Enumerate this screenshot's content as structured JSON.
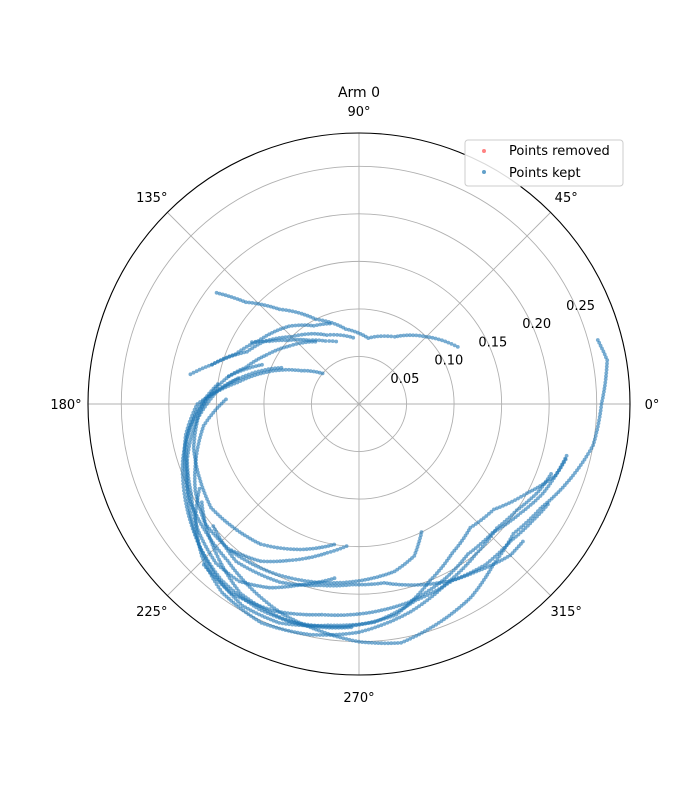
{
  "chart_data": {
    "type": "scatter",
    "projection": "polar",
    "title": "Arm 0",
    "theta_unit": "degrees",
    "r_ticks": [
      0.05,
      0.1,
      0.15,
      0.2,
      0.25
    ],
    "r_tick_labels": [
      "0.05",
      "0.10",
      "0.15",
      "0.20",
      "0.25"
    ],
    "r_max": 0.285,
    "theta_ticks": [
      0,
      45,
      90,
      135,
      180,
      225,
      270,
      315
    ],
    "theta_tick_labels": [
      "0°",
      "45°",
      "90°",
      "135°",
      "180°",
      "225°",
      "270°",
      "315°"
    ],
    "grid": true,
    "legend_position": "top-right",
    "series": [
      {
        "name": "Points removed",
        "color": "#ff4d4d",
        "points": []
      },
      {
        "name": "Points kept",
        "color": "#1f77b4",
        "tracks": [
          [
            [
              142,
              0.19
            ],
            [
              138,
              0.16
            ],
            [
              130,
              0.13
            ],
            [
              117,
              0.1
            ],
            [
              100,
              0.08
            ],
            [
              82,
              0.07
            ],
            [
              62,
              0.08
            ],
            [
              45,
              0.1
            ],
            [
              30,
              0.12
            ]
          ],
          [
            [
              165,
              0.16
            ],
            [
              160,
              0.145
            ],
            [
              155,
              0.13
            ],
            [
              147,
              0.12
            ],
            [
              135,
              0.1
            ],
            [
              115,
              0.08
            ],
            [
              95,
              0.07
            ]
          ],
          [
            [
              170,
              0.18
            ],
            [
              165,
              0.16
            ],
            [
              158,
              0.14
            ],
            [
              148,
              0.125
            ],
            [
              132,
              0.11
            ],
            [
              120,
              0.095
            ],
            [
              110,
              0.09
            ]
          ],
          [
            [
              150,
              0.13
            ],
            [
              145,
              0.115
            ],
            [
              138,
              0.1
            ],
            [
              128,
              0.085
            ],
            [
              118,
              0.075
            ],
            [
              110,
              0.07
            ]
          ],
          [
            [
              168,
              0.14
            ],
            [
              162,
              0.125
            ],
            [
              152,
              0.11
            ],
            [
              140,
              0.095
            ],
            [
              125,
              0.08
            ]
          ],
          [
            [
              140,
              0.05
            ],
            [
              150,
              0.07
            ],
            [
              160,
              0.1
            ],
            [
              170,
              0.13
            ],
            [
              180,
              0.17
            ],
            [
              190,
              0.185
            ],
            [
              200,
              0.195
            ],
            [
              210,
              0.205
            ],
            [
              220,
              0.21
            ],
            [
              230,
              0.215
            ],
            [
              240,
              0.225
            ],
            [
              250,
              0.235
            ],
            [
              260,
              0.242
            ],
            [
              270,
              0.25
            ],
            [
              280,
              0.255
            ],
            [
              290,
              0.245
            ],
            [
              300,
              0.235
            ],
            [
              310,
              0.22
            ],
            [
              320,
              0.212
            ],
            [
              330,
              0.22
            ],
            [
              340,
              0.235
            ],
            [
              350,
              0.25
            ],
            [
              360,
              0.255
            ],
            [
              370,
              0.265
            ],
            [
              375,
              0.26
            ]
          ],
          [
            [
              155,
              0.09
            ],
            [
              165,
              0.12
            ],
            [
              175,
              0.15
            ],
            [
              185,
              0.17
            ],
            [
              195,
              0.18
            ],
            [
              205,
              0.185
            ],
            [
              215,
              0.19
            ],
            [
              225,
              0.185
            ],
            [
              235,
              0.18
            ],
            [
              248,
              0.165
            ],
            [
              260,
              0.15
            ]
          ],
          [
            [
              178,
              0.14
            ],
            [
              188,
              0.165
            ],
            [
              198,
              0.18
            ],
            [
              208,
              0.195
            ],
            [
              218,
              0.205
            ],
            [
              228,
              0.205
            ],
            [
              238,
              0.195
            ],
            [
              246,
              0.18
            ],
            [
              252,
              0.17
            ],
            [
              258,
              0.16
            ],
            [
              265,
              0.15
            ]
          ],
          [
            [
              168,
              0.13
            ],
            [
              178,
              0.16
            ],
            [
              188,
              0.175
            ],
            [
              198,
              0.19
            ],
            [
              208,
              0.2
            ],
            [
              218,
              0.215
            ],
            [
              228,
              0.225
            ],
            [
              236,
              0.225
            ],
            [
              244,
              0.215
            ],
            [
              252,
              0.2
            ],
            [
              262,
              0.185
            ]
          ],
          [
            [
              172,
              0.15
            ],
            [
              182,
              0.17
            ],
            [
              192,
              0.185
            ],
            [
              202,
              0.195
            ],
            [
              212,
              0.21
            ],
            [
              222,
              0.225
            ],
            [
              230,
              0.235
            ],
            [
              240,
              0.245
            ],
            [
              250,
              0.245
            ],
            [
              262,
              0.235
            ],
            [
              274,
              0.23
            ],
            [
              286,
              0.215
            ],
            [
              298,
              0.21
            ],
            [
              305,
              0.215
            ],
            [
              310,
              0.22
            ],
            [
              315,
              0.225
            ],
            [
              320,
              0.225
            ]
          ],
          [
            [
              212,
              0.195
            ],
            [
              218,
              0.205
            ],
            [
              228,
              0.22
            ],
            [
              238,
              0.235
            ],
            [
              252,
              0.24
            ],
            [
              266,
              0.235
            ],
            [
              280,
              0.225
            ],
            [
              292,
              0.2
            ],
            [
              302,
              0.185
            ],
            [
              312,
              0.175
            ],
            [
              322,
              0.18
            ],
            [
              332,
              0.2
            ],
            [
              340,
              0.22
            ],
            [
              345,
              0.225
            ]
          ],
          [
            [
              208,
              0.19
            ],
            [
              215,
              0.21
            ],
            [
              224,
              0.23
            ],
            [
              234,
              0.245
            ],
            [
              246,
              0.252
            ],
            [
              258,
              0.248
            ],
            [
              270,
              0.24
            ],
            [
              284,
              0.225
            ],
            [
              296,
              0.21
            ],
            [
              308,
              0.2
            ],
            [
              318,
              0.195
            ],
            [
              326,
              0.2
            ],
            [
              334,
              0.21
            ],
            [
              340,
              0.215
            ]
          ],
          [
            [
              158,
              0.11
            ],
            [
              168,
              0.14
            ],
            [
              178,
              0.16
            ],
            [
              188,
              0.18
            ],
            [
              198,
              0.195
            ],
            [
              210,
              0.21
            ],
            [
              222,
              0.225
            ],
            [
              232,
              0.235
            ],
            [
              244,
              0.24
            ],
            [
              256,
              0.24
            ],
            [
              268,
              0.235
            ]
          ],
          [
            [
              229,
              0.205
            ],
            [
              242,
              0.2
            ],
            [
              252,
              0.195
            ],
            [
              262,
              0.19
            ],
            [
              272,
              0.185
            ],
            [
              282,
              0.18
            ],
            [
              290,
              0.17
            ],
            [
              296,
              0.15
            ]
          ],
          [
            [
              220,
              0.2
            ],
            [
              232,
              0.21
            ],
            [
              246,
              0.205
            ],
            [
              258,
              0.195
            ],
            [
              268,
              0.19
            ],
            [
              278,
              0.19
            ],
            [
              288,
              0.2
            ],
            [
              298,
              0.21
            ],
            [
              308,
              0.215
            ],
            [
              318,
              0.215
            ],
            [
              326,
              0.22
            ],
            [
              332,
              0.225
            ]
          ],
          [
            [
              226,
              0.235
            ],
            [
              236,
              0.24
            ],
            [
              248,
              0.235
            ],
            [
              260,
              0.225
            ],
            [
              272,
              0.22
            ],
            [
              284,
              0.215
            ],
            [
              296,
              0.205
            ],
            [
              306,
              0.195
            ],
            [
              316,
              0.195
            ],
            [
              326,
              0.205
            ],
            [
              334,
              0.215
            ],
            [
              340,
              0.22
            ],
            [
              346,
              0.225
            ]
          ]
        ]
      }
    ]
  },
  "legend": {
    "items": [
      {
        "label": "Points removed",
        "color": "#ff4d4d"
      },
      {
        "label": "Points kept",
        "color": "#1f77b4"
      }
    ]
  }
}
